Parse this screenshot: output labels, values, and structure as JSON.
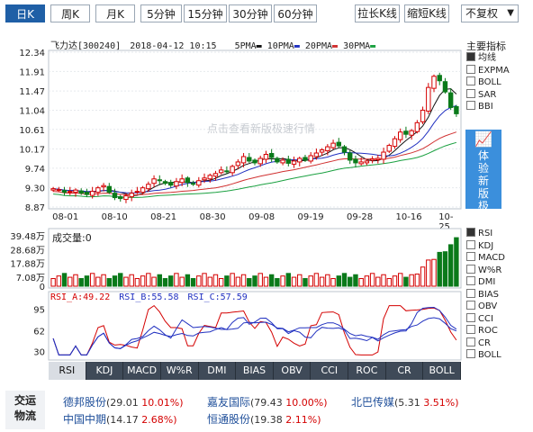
{
  "periods": [
    {
      "label": "日K",
      "active": true
    },
    {
      "label": "周K",
      "active": false
    },
    {
      "label": "月K",
      "active": false
    },
    {
      "label": "5分钟",
      "active": false
    },
    {
      "label": "15分钟",
      "active": false
    },
    {
      "label": "30分钟",
      "active": false
    },
    {
      "label": "60分钟",
      "active": false
    }
  ],
  "toolbar": {
    "stretch_k": "拉长K线",
    "shrink_k": "缩短K线",
    "adjust": "不复权"
  },
  "chart_header": {
    "stock": "飞力达[300240]",
    "datetime": "2018-04-12 10:15",
    "ma5": "5PMA",
    "ma10": "10PMA",
    "ma20": "20PMA",
    "ma30": "30PMA"
  },
  "watermark": "点击查看新版极速行情",
  "promo": "体验新版极速行情",
  "main_indicators": {
    "title": "主要指标",
    "items": [
      {
        "label": "均线",
        "checked": true
      },
      {
        "label": "EXPMA",
        "checked": false
      },
      {
        "label": "BOLL",
        "checked": false
      },
      {
        "label": "SAR",
        "checked": false
      },
      {
        "label": "BBI",
        "checked": false
      }
    ]
  },
  "sub_indicators": [
    {
      "label": "RSI",
      "checked": true
    },
    {
      "label": "KDJ",
      "checked": false
    },
    {
      "label": "MACD",
      "checked": false
    },
    {
      "label": "W%R",
      "checked": false
    },
    {
      "label": "DMI",
      "checked": false
    },
    {
      "label": "BIAS",
      "checked": false
    },
    {
      "label": "OBV",
      "checked": false
    },
    {
      "label": "CCI",
      "checked": false
    },
    {
      "label": "ROC",
      "checked": false
    },
    {
      "label": "CR",
      "checked": false
    },
    {
      "label": "BOLL",
      "checked": false
    }
  ],
  "price_axis": [
    "12.34",
    "11.91",
    "11.47",
    "11.04",
    "10.61",
    "10.17",
    "9.74",
    "9.30",
    "8.87"
  ],
  "date_axis": [
    "08-01",
    "08-10",
    "08-21",
    "08-30",
    "09-08",
    "09-19",
    "09-28",
    "10-16",
    "10-25"
  ],
  "volume": {
    "label": "成交量:0",
    "axis": [
      "39.48万",
      "28.68万",
      "17.88万",
      "7.08万",
      "0"
    ]
  },
  "rsi": {
    "a": "RSI_A:49.22",
    "b": "RSI_B:55.58",
    "c": "RSI_C:57.59",
    "axis": [
      "95",
      "62",
      "30"
    ]
  },
  "bottom_tabs": [
    "RSI",
    "KDJ",
    "MACD",
    "W%R",
    "DMI",
    "BIAS",
    "OBV",
    "CCI",
    "ROC",
    "CR",
    "BOLL"
  ],
  "hot": {
    "label": "交运物流",
    "items": [
      {
        "name": "德邦股份",
        "price": "(29.01",
        "pct": "10.01%)"
      },
      {
        "name": "嘉友国际",
        "price": "(79.43",
        "pct": "10.00%)"
      },
      {
        "name": "北巴传媒",
        "price": "(5.31",
        "pct": "3.51%)"
      },
      {
        "name": "中国中期",
        "price": "(14.17",
        "pct": "2.68%)"
      },
      {
        "name": "恒通股份",
        "price": "(19.38",
        "pct": "2.11%)"
      }
    ]
  },
  "colors": {
    "up": "#d40000",
    "down": "#0a7a1a",
    "ma5": "#111111",
    "ma10": "#2030c0",
    "ma20": "#d03030",
    "ma30": "#1aa040",
    "accent": "#1f5fa6"
  },
  "chart_data": {
    "type": "candlestick",
    "price_range": [
      8.87,
      12.34
    ],
    "closes": [
      9.28,
      9.26,
      9.2,
      9.22,
      9.25,
      9.18,
      9.15,
      9.22,
      9.3,
      9.35,
      9.2,
      9.08,
      9.06,
      9.12,
      9.18,
      9.22,
      9.3,
      9.38,
      9.5,
      9.46,
      9.4,
      9.36,
      9.44,
      9.5,
      9.42,
      9.38,
      9.46,
      9.52,
      9.58,
      9.62,
      9.7,
      9.66,
      9.78,
      9.88,
      10.0,
      9.9,
      9.86,
      9.96,
      10.05,
      9.98,
      9.88,
      9.92,
      9.85,
      9.9,
      9.96,
      9.92,
      10.02,
      10.08,
      10.15,
      10.22,
      10.3,
      10.24,
      10.1,
      9.92,
      9.86,
      9.88,
      9.9,
      9.95,
      9.96,
      10.1,
      10.25,
      10.4,
      10.55,
      10.5,
      10.58,
      10.76,
      11.04,
      11.55,
      11.8,
      11.7,
      11.45,
      11.1,
      10.96
    ],
    "volume_axis": [
      0,
      39.48
    ],
    "volume_unit": "万",
    "rsi_axis": [
      30,
      95
    ],
    "rsi_last": [
      49.22,
      55.58,
      57.59
    ]
  }
}
